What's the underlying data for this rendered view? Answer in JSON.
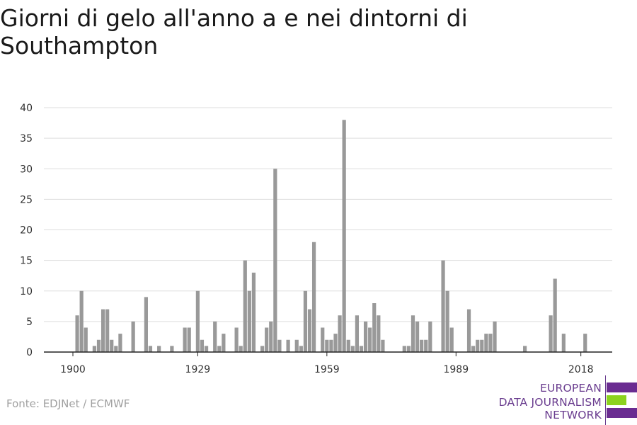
{
  "title": "Giorni di gelo all'anno a e nei dintorni di Southampton",
  "source": "Fonte: EDJNet / ECMWF",
  "logo": {
    "line1": "EUROPEAN",
    "line2": "DATA JOURNALISM",
    "line3": "NETWORK",
    "colors": {
      "purple": "#6a2c91",
      "green": "#8cd21e"
    }
  },
  "chart_data": {
    "type": "bar",
    "title": "Giorni di gelo all'anno a e nei dintorni di Southampton",
    "xlabel": "",
    "ylabel": "",
    "ylim": [
      0,
      40
    ],
    "yticks": [
      0,
      5,
      10,
      15,
      20,
      25,
      30,
      35,
      40
    ],
    "xlim": [
      1900,
      2022
    ],
    "xticks": [
      1900,
      1929,
      1959,
      1989,
      2018
    ],
    "grid": true,
    "bar_color": "#999999",
    "x": [
      1900,
      1901,
      1902,
      1903,
      1904,
      1905,
      1906,
      1907,
      1908,
      1909,
      1910,
      1911,
      1912,
      1913,
      1914,
      1915,
      1916,
      1917,
      1918,
      1919,
      1920,
      1921,
      1922,
      1923,
      1924,
      1925,
      1926,
      1927,
      1928,
      1929,
      1930,
      1931,
      1932,
      1933,
      1934,
      1935,
      1936,
      1937,
      1938,
      1939,
      1940,
      1941,
      1942,
      1943,
      1944,
      1945,
      1946,
      1947,
      1948,
      1949,
      1950,
      1951,
      1952,
      1953,
      1954,
      1955,
      1956,
      1957,
      1958,
      1959,
      1960,
      1961,
      1962,
      1963,
      1964,
      1965,
      1966,
      1967,
      1968,
      1969,
      1970,
      1971,
      1972,
      1973,
      1974,
      1975,
      1976,
      1977,
      1978,
      1979,
      1980,
      1981,
      1982,
      1983,
      1984,
      1985,
      1986,
      1987,
      1988,
      1989,
      1990,
      1991,
      1992,
      1993,
      1994,
      1995,
      1996,
      1997,
      1998,
      1999,
      2000,
      2001,
      2002,
      2003,
      2004,
      2005,
      2006,
      2007,
      2008,
      2009,
      2010,
      2011,
      2012,
      2013,
      2014,
      2015,
      2016,
      2017,
      2018,
      2019,
      2020,
      2021
    ],
    "values": [
      0,
      6,
      10,
      4,
      0,
      1,
      2,
      7,
      7,
      2,
      1,
      3,
      0,
      0,
      5,
      0,
      0,
      9,
      1,
      0,
      1,
      0,
      0,
      1,
      0,
      0,
      4,
      4,
      0,
      10,
      2,
      1,
      0,
      5,
      1,
      3,
      0,
      0,
      4,
      1,
      15,
      10,
      13,
      0,
      1,
      4,
      5,
      30,
      2,
      0,
      2,
      0,
      2,
      1,
      10,
      7,
      18,
      0,
      4,
      2,
      2,
      3,
      6,
      38,
      2,
      1,
      6,
      1,
      5,
      4,
      8,
      6,
      2,
      0,
      0,
      0,
      0,
      1,
      1,
      6,
      5,
      2,
      2,
      5,
      0,
      0,
      15,
      10,
      4,
      0,
      0,
      0,
      7,
      1,
      2,
      2,
      3,
      3,
      5,
      0,
      0,
      0,
      0,
      0,
      0,
      1,
      0,
      0,
      0,
      0,
      0,
      6,
      12,
      0,
      3,
      0,
      0,
      0,
      0,
      3,
      0,
      0
    ]
  }
}
